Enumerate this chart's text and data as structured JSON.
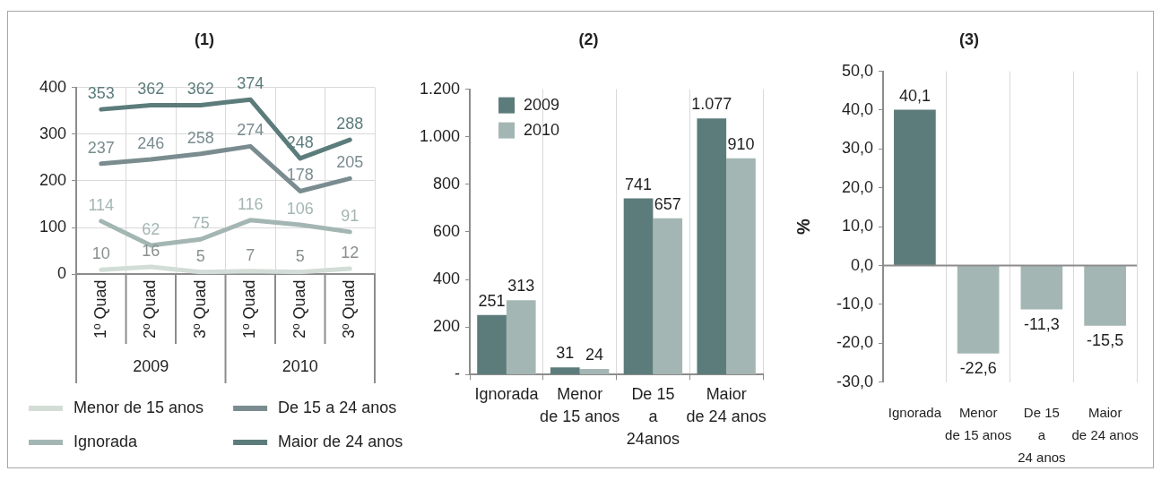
{
  "chart_data": [
    {
      "type": "line",
      "title": "(1)",
      "categories": [
        "1º Quad",
        "2º Quad",
        "3º Quad",
        "1º Quad",
        "2º Quad",
        "3º Quad"
      ],
      "annotations": [
        "2009",
        "2010"
      ],
      "series": [
        {
          "name": "Menor de 15 anos",
          "color": "#d3ddd7",
          "values": [
            10,
            16,
            5,
            7,
            5,
            12
          ]
        },
        {
          "name": "De 15 a 24 anos",
          "color": "#7a8c8f",
          "values": [
            237,
            246,
            258,
            274,
            178,
            205
          ]
        },
        {
          "name": "Ignorada",
          "color": "#a4b6b3",
          "values": [
            114,
            62,
            75,
            116,
            106,
            91
          ]
        },
        {
          "name": "Maior de 24 anos",
          "color": "#5c7c7b",
          "values": [
            353,
            362,
            362,
            374,
            248,
            288
          ]
        }
      ],
      "ylim": [
        0,
        400
      ],
      "yticks": [
        0,
        100,
        200,
        300,
        400
      ],
      "grid": true,
      "legend": "bottom",
      "marker": "none",
      "data_labels": true
    },
    {
      "type": "bar",
      "title": "(2)",
      "categories": [
        "Ignorada",
        "Menor\nde 15 anos",
        "De 15\na\n24anos",
        "Maior\nde 24 anos"
      ],
      "series": [
        {
          "name": "2009",
          "color": "#5c7c7b",
          "values": [
            251,
            31,
            741,
            1077
          ],
          "value_labels": [
            "251",
            "31",
            "741",
            "1.077"
          ]
        },
        {
          "name": "2010",
          "color": "#a4b6b3",
          "values": [
            313,
            24,
            657,
            910
          ],
          "value_labels": [
            "313",
            "24",
            "657",
            "910"
          ]
        }
      ],
      "ylim": [
        0,
        1200
      ],
      "yticks": [
        {
          "value": 0,
          "label": "-"
        },
        200,
        400,
        600,
        800,
        {
          "value": 1000,
          "label": "1.000"
        },
        {
          "value": 1200,
          "label": "1.200"
        }
      ],
      "grid": "x",
      "legend": "top left"
    },
    {
      "type": "bar",
      "title": "(3)",
      "ylabel": "%",
      "categories": [
        "Ignorada",
        "Menor\nde 15 anos",
        "De 15\na\n24 anos",
        "Maior\nde 24 anos"
      ],
      "values": [
        40.1,
        -22.6,
        -11.3,
        -15.5
      ],
      "colors": [
        "#5c7c7b",
        "#a4b6b3",
        "#a4b6b3",
        "#a4b6b3"
      ],
      "value_labels": [
        "40,1",
        "-22,6",
        "-11,3",
        "-15,5"
      ],
      "ylim": [
        -30,
        50
      ],
      "yticks": [
        {
          "value": -30,
          "label": "-30,0"
        },
        {
          "value": -20,
          "label": "-20,0"
        },
        {
          "value": -10,
          "label": "-10,0"
        },
        {
          "value": 0,
          "label": "0,0"
        },
        {
          "value": 10,
          "label": "10,0"
        },
        {
          "value": 20,
          "label": "20,0"
        },
        {
          "value": 30,
          "label": "30,0"
        },
        {
          "value": 40,
          "label": "40,0"
        },
        {
          "value": 50,
          "label": "50,0"
        }
      ],
      "grid": "x"
    }
  ]
}
